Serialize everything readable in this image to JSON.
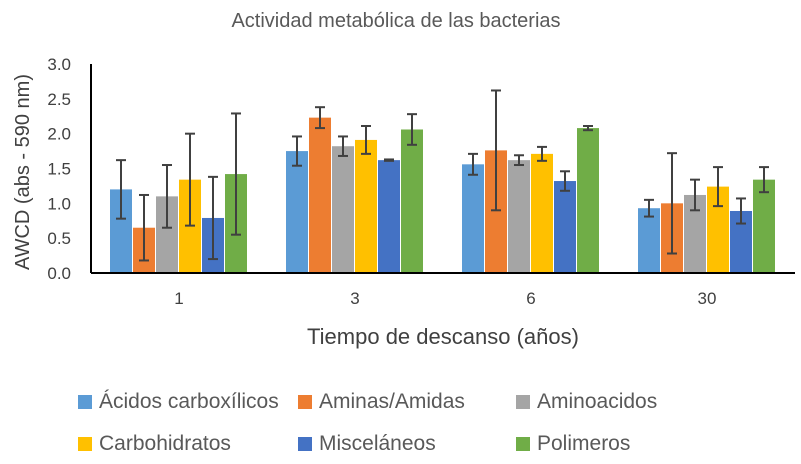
{
  "chart_data": {
    "type": "bar",
    "title": "Actividad metabólica de las bacterias",
    "xlabel": "Tiempo de descanso (años)",
    "ylabel": "AWCD (abs - 590 nm)",
    "ylim": [
      0,
      3
    ],
    "yticks": [
      "0.0",
      "0.5",
      "1.0",
      "1.5",
      "2.0",
      "2.5",
      "3.0"
    ],
    "categories": [
      "1",
      "3",
      "6",
      "30"
    ],
    "grid": false,
    "legend_position": "bottom",
    "series": [
      {
        "name": "Ácidos carboxílicos",
        "color": "#5B9BD5",
        "values": [
          1.2,
          1.75,
          1.56,
          0.93
        ],
        "errors": [
          0.42,
          0.21,
          0.15,
          0.12
        ]
      },
      {
        "name": "Aminas/Amidas",
        "color": "#ED7D31",
        "values": [
          0.65,
          2.23,
          1.76,
          1.0
        ],
        "errors": [
          0.47,
          0.15,
          0.86,
          0.72
        ]
      },
      {
        "name": "Aminoacidos",
        "color": "#A5A5A5",
        "values": [
          1.1,
          1.82,
          1.62,
          1.12
        ],
        "errors": [
          0.45,
          0.14,
          0.07,
          0.22
        ]
      },
      {
        "name": "Carbohidratos",
        "color": "#FFC000",
        "values": [
          1.34,
          1.91,
          1.71,
          1.24
        ],
        "errors": [
          0.66,
          0.2,
          0.1,
          0.28
        ]
      },
      {
        "name": "Misceláneos",
        "color": "#4472C4",
        "values": [
          0.79,
          1.62,
          1.32,
          0.89
        ],
        "errors": [
          0.59,
          0.01,
          0.14,
          0.18
        ]
      },
      {
        "name": "Polimeros",
        "color": "#70AD47",
        "values": [
          1.42,
          2.06,
          2.08,
          1.34
        ],
        "errors": [
          0.87,
          0.22,
          0.03,
          0.18
        ]
      }
    ]
  }
}
